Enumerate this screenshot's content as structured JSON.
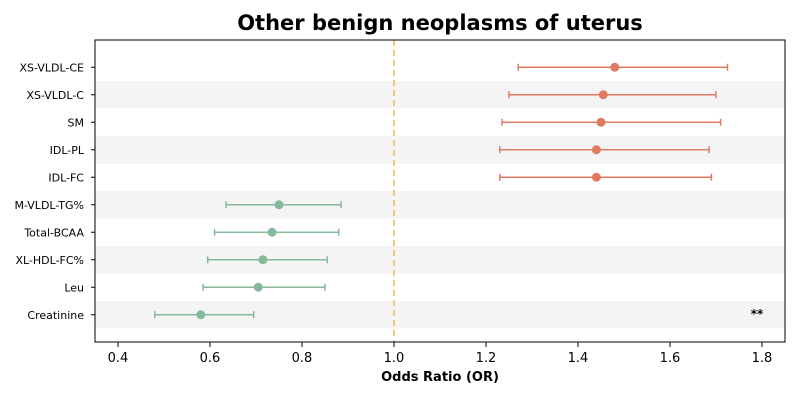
{
  "chart_data": {
    "type": "forest",
    "title": "Other benign neoplasms of uterus",
    "xlabel": "Odds Ratio (OR)",
    "xlim": [
      0.35,
      1.85
    ],
    "xticks": [
      0.4,
      0.6,
      0.8,
      1.0,
      1.2,
      1.4,
      1.6,
      1.8
    ],
    "xtick_labels": [
      "0.4",
      "0.6",
      "0.8",
      "1.0",
      "1.2",
      "1.4",
      "1.6",
      "1.8"
    ],
    "reference_line": 1.0,
    "reference_color": "#f5c77e",
    "colors": {
      "risk": "#e07b62",
      "protective": "#86b99a",
      "band": "#f4f4f4"
    },
    "rows": [
      {
        "label": "XS-VLDL-CE",
        "or": 1.48,
        "lo": 1.27,
        "hi": 1.725,
        "group": "risk",
        "sig": ""
      },
      {
        "label": "XS-VLDL-C",
        "or": 1.455,
        "lo": 1.25,
        "hi": 1.7,
        "group": "risk",
        "sig": ""
      },
      {
        "label": "SM",
        "or": 1.45,
        "lo": 1.235,
        "hi": 1.71,
        "group": "risk",
        "sig": ""
      },
      {
        "label": "IDL-PL",
        "or": 1.44,
        "lo": 1.23,
        "hi": 1.685,
        "group": "risk",
        "sig": ""
      },
      {
        "label": "IDL-FC",
        "or": 1.44,
        "lo": 1.23,
        "hi": 1.69,
        "group": "risk",
        "sig": ""
      },
      {
        "label": "M-VLDL-TG%",
        "or": 0.75,
        "lo": 0.635,
        "hi": 0.885,
        "group": "protective",
        "sig": ""
      },
      {
        "label": "Total-BCAA",
        "or": 0.735,
        "lo": 0.61,
        "hi": 0.88,
        "group": "protective",
        "sig": ""
      },
      {
        "label": "XL-HDL-FC%",
        "or": 0.715,
        "lo": 0.595,
        "hi": 0.855,
        "group": "protective",
        "sig": ""
      },
      {
        "label": "Leu",
        "or": 0.705,
        "lo": 0.585,
        "hi": 0.85,
        "group": "protective",
        "sig": ""
      },
      {
        "label": "Creatinine",
        "or": 0.58,
        "lo": 0.48,
        "hi": 0.695,
        "group": "protective",
        "sig": "**"
      }
    ]
  }
}
